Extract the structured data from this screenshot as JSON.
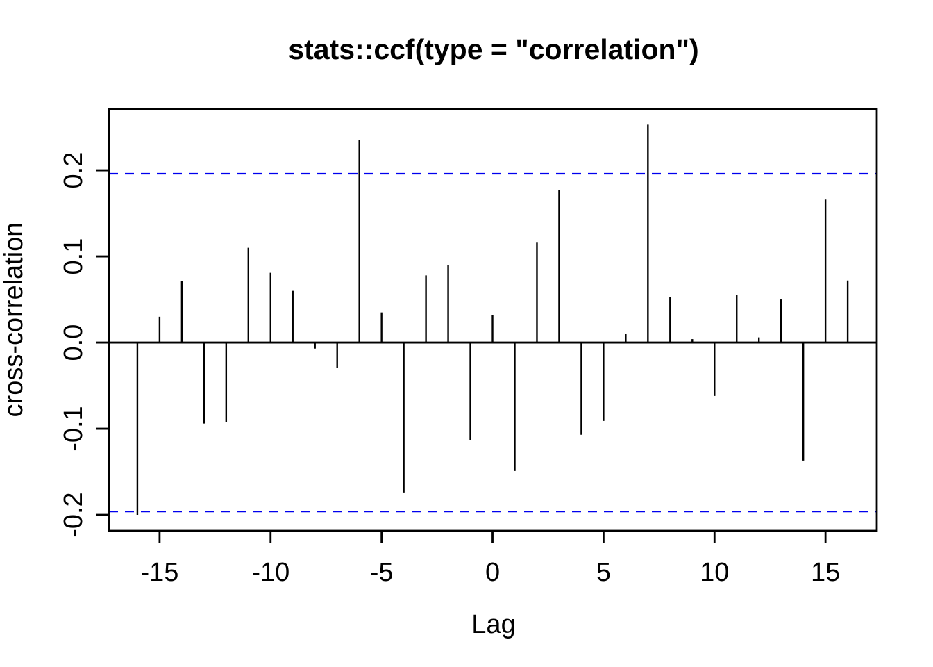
{
  "chart_data": {
    "type": "bar",
    "subtype": "stem-ccf",
    "title": "stats::ccf(type = \"correlation\")",
    "xlabel": "Lag",
    "ylabel": "cross-correlation",
    "x": [
      -16,
      -15,
      -14,
      -13,
      -12,
      -11,
      -10,
      -9,
      -8,
      -7,
      -6,
      -5,
      -4,
      -3,
      -2,
      -1,
      0,
      1,
      2,
      3,
      4,
      5,
      6,
      7,
      8,
      9,
      10,
      11,
      12,
      13,
      14,
      15,
      16
    ],
    "values": [
      -0.2,
      0.03,
      0.071,
      -0.094,
      -0.092,
      0.11,
      0.081,
      0.06,
      -0.007,
      -0.029,
      0.235,
      0.035,
      -0.174,
      0.078,
      0.09,
      -0.113,
      0.032,
      -0.149,
      0.116,
      0.177,
      -0.107,
      -0.091,
      0.01,
      0.253,
      0.053,
      0.004,
      -0.062,
      0.055,
      0.006,
      0.05,
      -0.137,
      0.166,
      0.072
    ],
    "confidence_limit": 0.196,
    "xlim": [
      -17.28,
      17.31
    ],
    "ylim": [
      -0.2185,
      0.271
    ],
    "xticks": [
      -15,
      -10,
      -5,
      0,
      5,
      10,
      15
    ],
    "xtick_labels": [
      "-15",
      "-10",
      "-5",
      "0",
      "5",
      "10",
      "15"
    ],
    "yticks": [
      -0.2,
      -0.1,
      0.0,
      0.1,
      0.2
    ],
    "ytick_labels": [
      "-0.2",
      "-0.1",
      "0.0",
      "0.1",
      "0.2"
    ],
    "grid": false,
    "legend": null,
    "colors": {
      "bar": "#000000",
      "axis": "#000000",
      "confidence_line": "#0000ee",
      "background": "#ffffff",
      "text": "#000000"
    }
  }
}
